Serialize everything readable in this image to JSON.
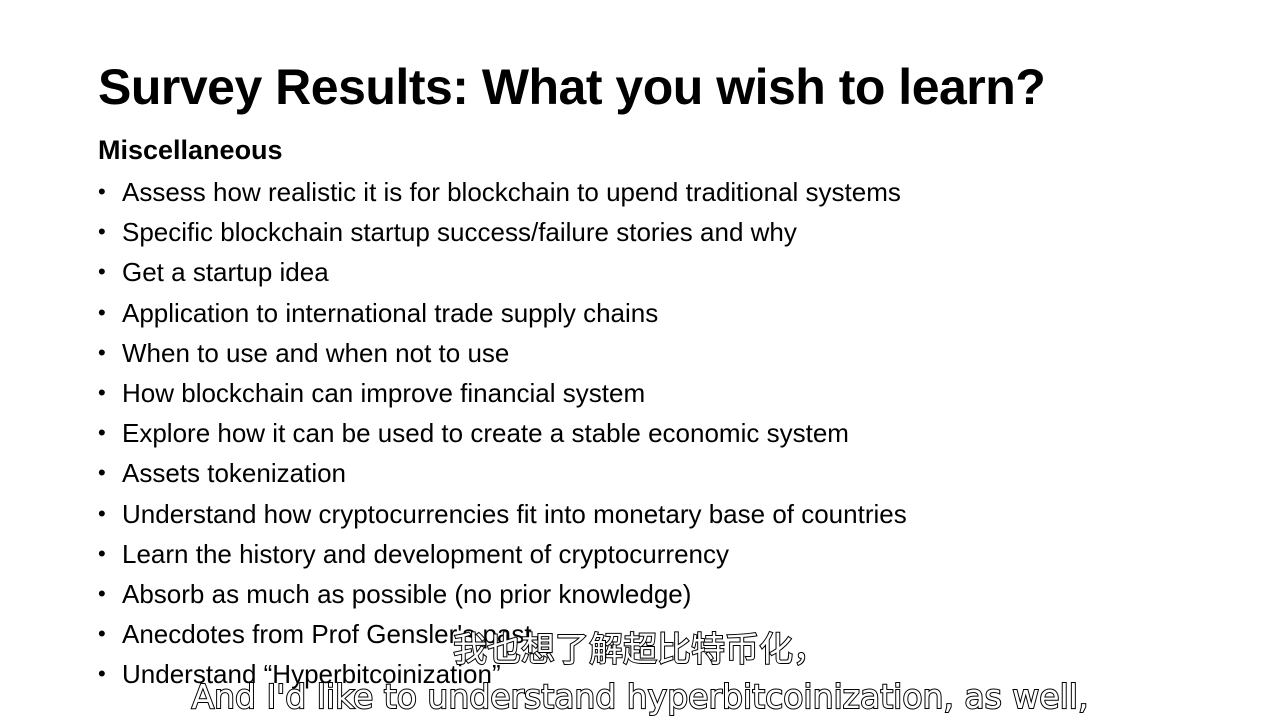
{
  "slide": {
    "title": "Survey Results: What you wish to learn?",
    "section_heading": "Miscellaneous",
    "bullet_glyph": "•",
    "bullets": [
      "Assess how realistic it is for blockchain to upend traditional systems",
      "Specific blockchain startup success/failure stories and why",
      "Get a startup idea",
      "Application to international trade supply chains",
      "When to use and when not to use",
      "How blockchain can improve financial system",
      "Explore how it can be used to create a stable economic system",
      "Assets tokenization",
      "Understand how cryptocurrencies fit into monetary base of countries",
      "Learn the history and development of cryptocurrency",
      "Absorb as much as possible (no prior knowledge)",
      "Anecdotes from Prof Gensler's past",
      "Understand “Hyperbitcoinization”"
    ]
  },
  "subtitles": {
    "chinese": "我也想了解超比特币化，",
    "english": "And I'd like to understand hyperbitcoinization, as well,"
  }
}
